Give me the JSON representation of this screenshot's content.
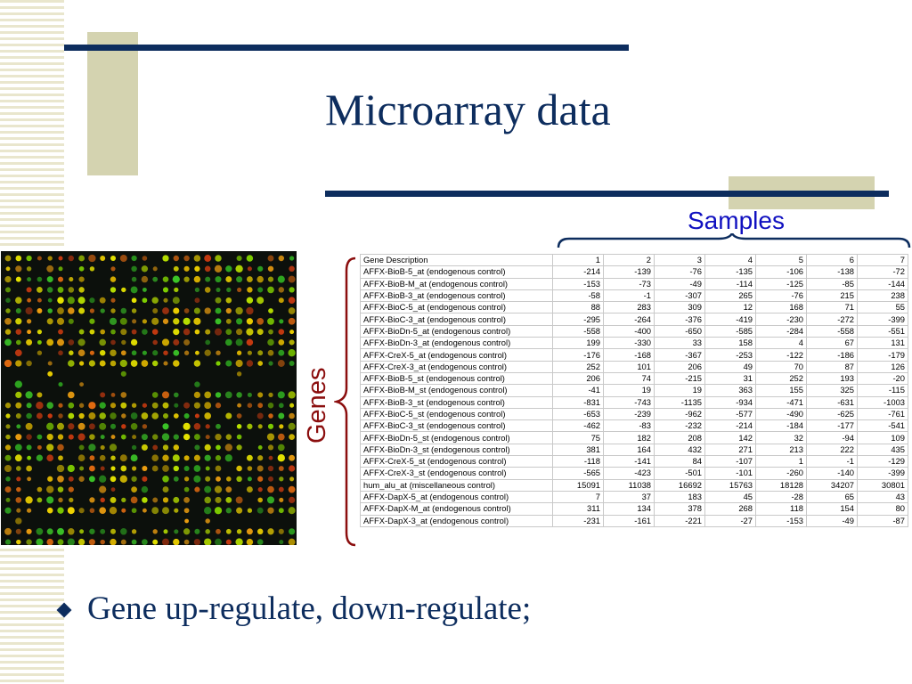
{
  "slide": {
    "title": "Microarray data",
    "samples_label": "Samples",
    "genes_label": "Genes",
    "bullet": "Gene up-regulate, down-regulate;",
    "colors": {
      "title": "#0d2d5e",
      "samples": "#1010c0",
      "genes": "#8b0e0e",
      "accent": "#d4d3b0"
    }
  },
  "microarray_image": {
    "description_icon": "microarray-spots-image"
  },
  "table": {
    "headers": [
      "Gene Description",
      "1",
      "2",
      "3",
      "4",
      "5",
      "6",
      "7"
    ],
    "rows": [
      [
        "AFFX-BioB-5_at (endogenous control)",
        "-214",
        "-139",
        "-76",
        "-135",
        "-106",
        "-138",
        "-72"
      ],
      [
        "AFFX-BioB-M_at (endogenous control)",
        "-153",
        "-73",
        "-49",
        "-114",
        "-125",
        "-85",
        "-144"
      ],
      [
        "AFFX-BioB-3_at (endogenous control)",
        "-58",
        "-1",
        "-307",
        "265",
        "-76",
        "215",
        "238"
      ],
      [
        "AFFX-BioC-5_at (endogenous control)",
        "88",
        "283",
        "309",
        "12",
        "168",
        "71",
        "55"
      ],
      [
        "AFFX-BioC-3_at (endogenous control)",
        "-295",
        "-264",
        "-376",
        "-419",
        "-230",
        "-272",
        "-399"
      ],
      [
        "AFFX-BioDn-5_at (endogenous control)",
        "-558",
        "-400",
        "-650",
        "-585",
        "-284",
        "-558",
        "-551"
      ],
      [
        "AFFX-BioDn-3_at (endogenous control)",
        "199",
        "-330",
        "33",
        "158",
        "4",
        "67",
        "131"
      ],
      [
        "AFFX-CreX-5_at (endogenous control)",
        "-176",
        "-168",
        "-367",
        "-253",
        "-122",
        "-186",
        "-179"
      ],
      [
        "AFFX-CreX-3_at (endogenous control)",
        "252",
        "101",
        "206",
        "49",
        "70",
        "87",
        "126"
      ],
      [
        "AFFX-BioB-5_st (endogenous control)",
        "206",
        "74",
        "-215",
        "31",
        "252",
        "193",
        "-20"
      ],
      [
        "AFFX-BioB-M_st (endogenous control)",
        "-41",
        "19",
        "19",
        "363",
        "155",
        "325",
        "-115"
      ],
      [
        "AFFX-BioB-3_st (endogenous control)",
        "-831",
        "-743",
        "-1135",
        "-934",
        "-471",
        "-631",
        "-1003"
      ],
      [
        "AFFX-BioC-5_st (endogenous control)",
        "-653",
        "-239",
        "-962",
        "-577",
        "-490",
        "-625",
        "-761"
      ],
      [
        "AFFX-BioC-3_st (endogenous control)",
        "-462",
        "-83",
        "-232",
        "-214",
        "-184",
        "-177",
        "-541"
      ],
      [
        "AFFX-BioDn-5_st (endogenous control)",
        "75",
        "182",
        "208",
        "142",
        "32",
        "-94",
        "109"
      ],
      [
        "AFFX-BioDn-3_st (endogenous control)",
        "381",
        "164",
        "432",
        "271",
        "213",
        "222",
        "435"
      ],
      [
        "AFFX-CreX-5_st (endogenous control)",
        "-118",
        "-141",
        "84",
        "-107",
        "1",
        "-1",
        "-129"
      ],
      [
        "AFFX-CreX-3_st (endogenous control)",
        "-565",
        "-423",
        "-501",
        "-101",
        "-260",
        "-140",
        "-399"
      ],
      [
        "hum_alu_at (miscellaneous control)",
        "15091",
        "11038",
        "16692",
        "15763",
        "18128",
        "34207",
        "30801"
      ],
      [
        "AFFX-DapX-5_at (endogenous control)",
        "7",
        "37",
        "183",
        "45",
        "-28",
        "65",
        "43"
      ],
      [
        "AFFX-DapX-M_at (endogenous control)",
        "311",
        "134",
        "378",
        "268",
        "118",
        "154",
        "80"
      ],
      [
        "AFFX-DapX-3_at (endogenous control)",
        "-231",
        "-161",
        "-221",
        "-27",
        "-153",
        "-49",
        "-87"
      ]
    ]
  }
}
